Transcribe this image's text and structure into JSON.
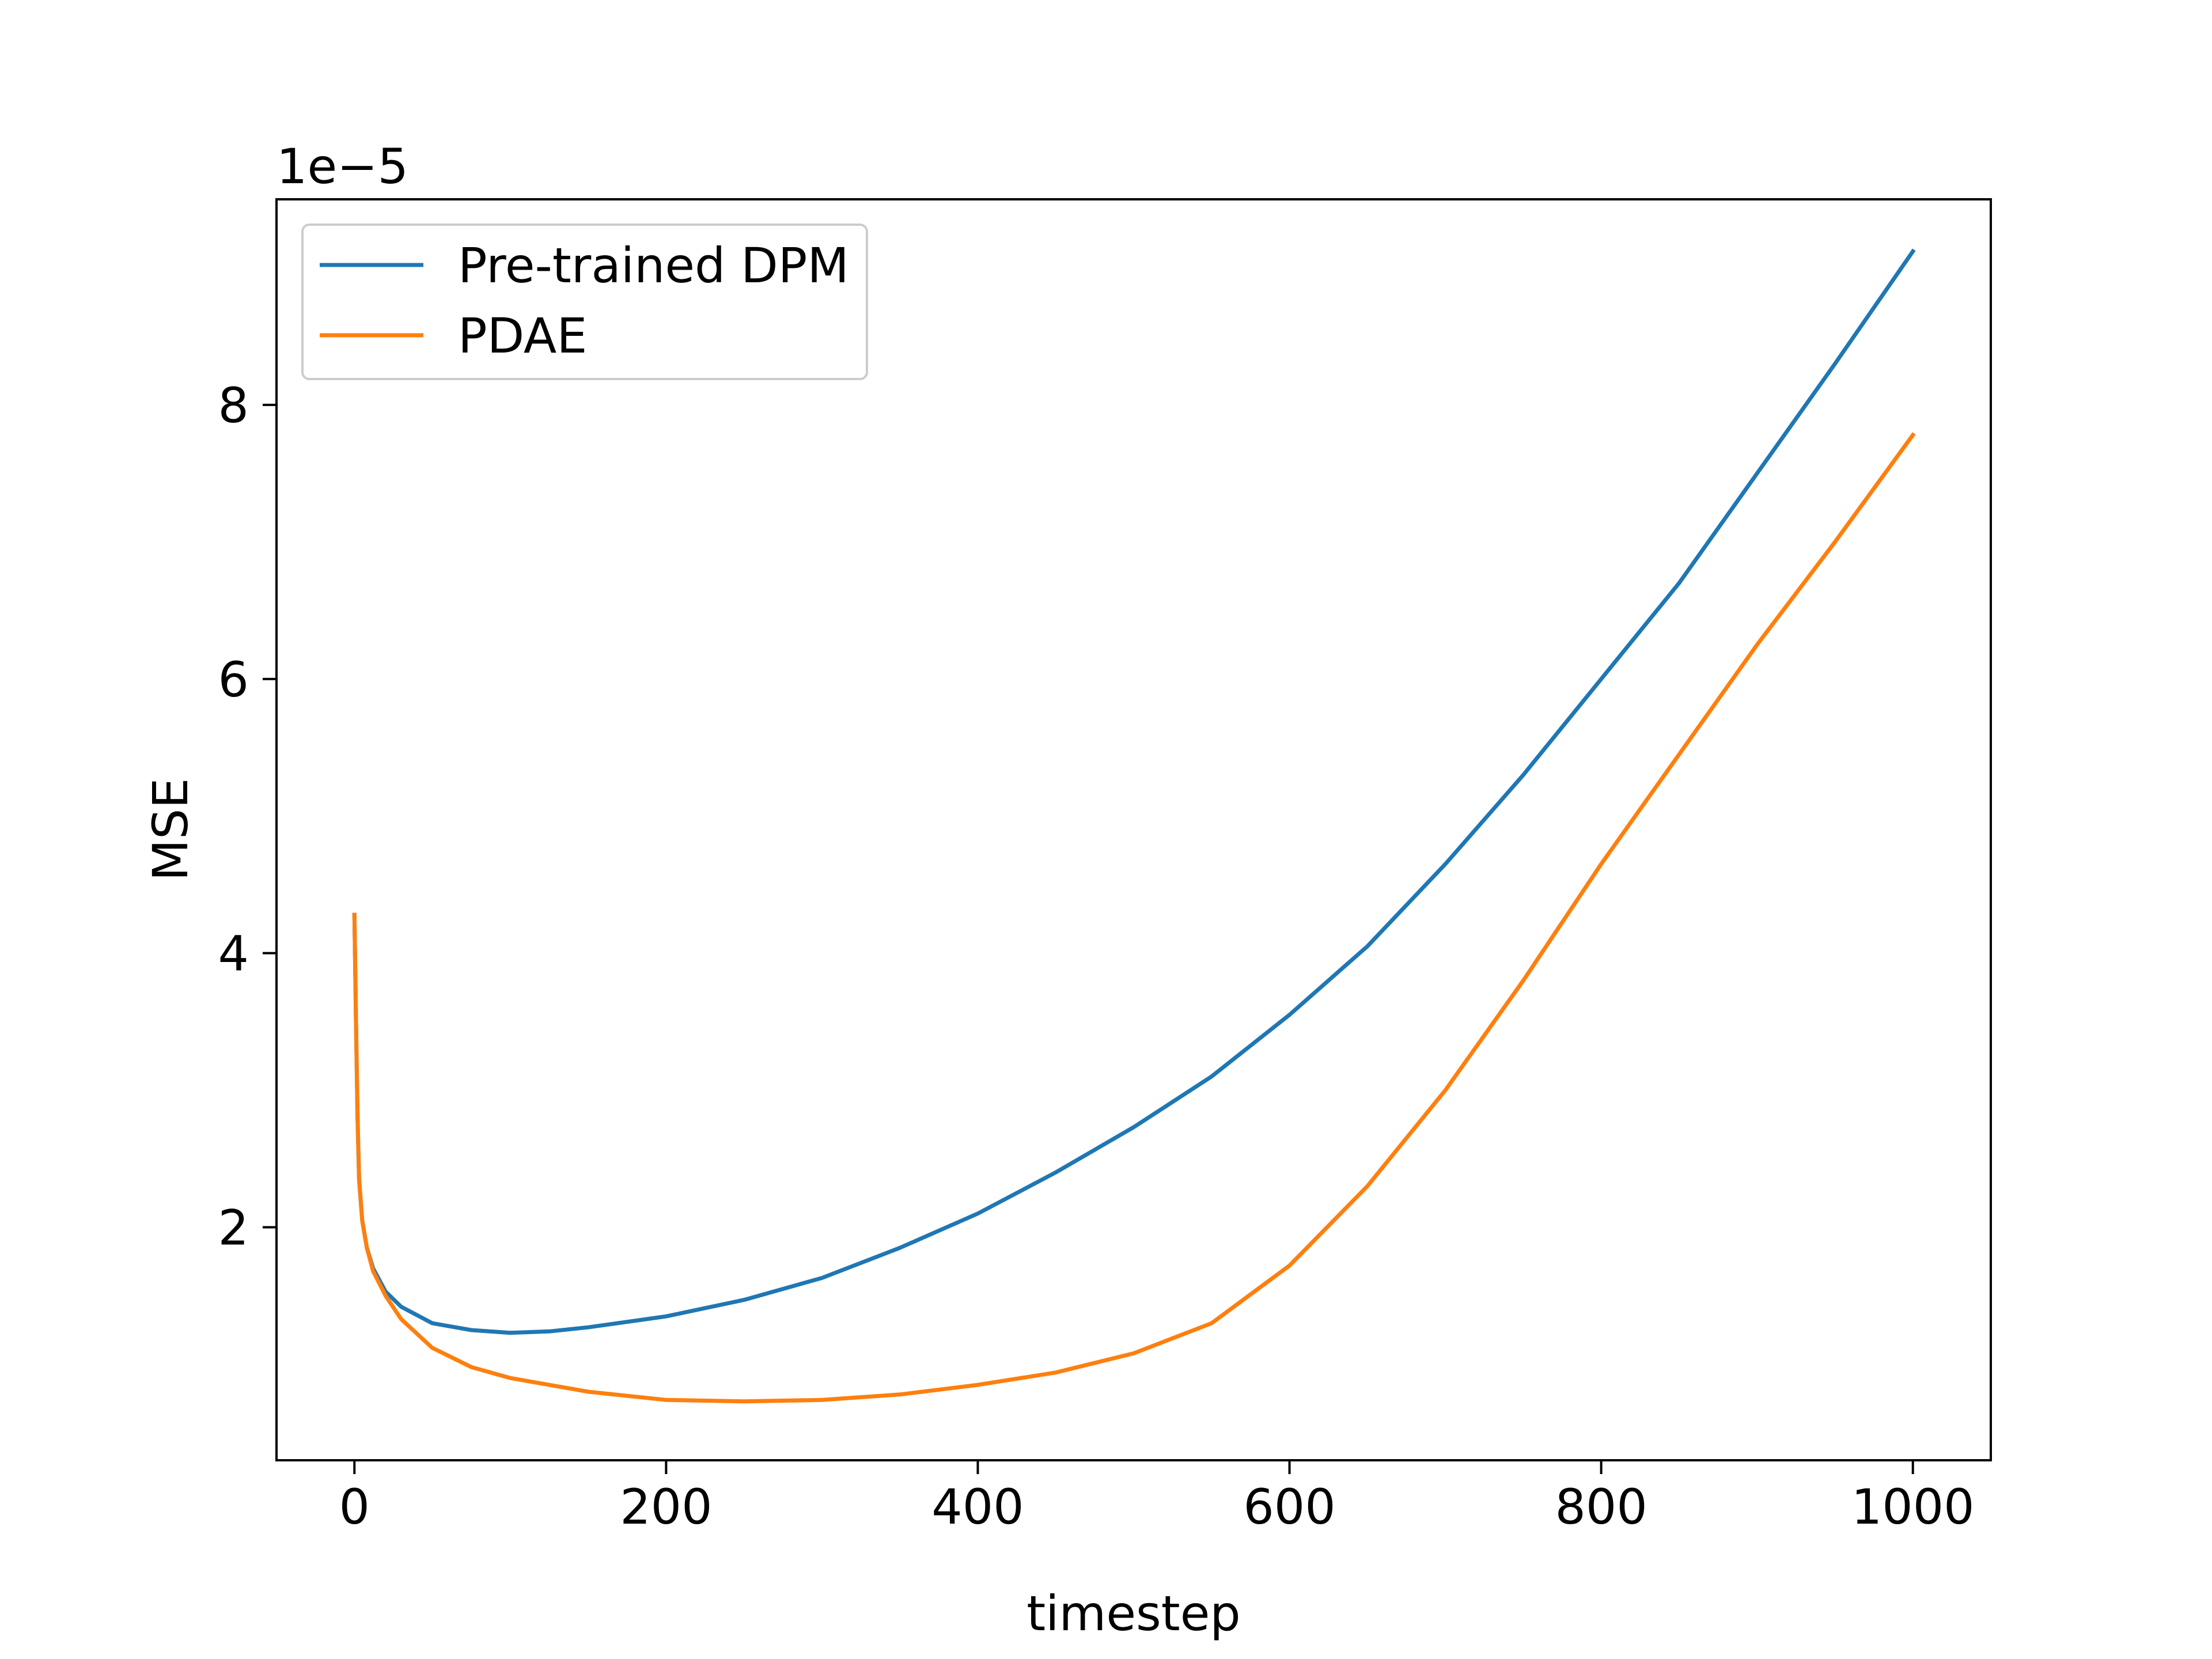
{
  "chart_data": {
    "type": "line",
    "title": "",
    "xlabel": "timestep",
    "ylabel": "MSE",
    "offset_text": "1e−5",
    "xlim": [
      -50,
      1050
    ],
    "ylim": [
      0.3,
      9.5
    ],
    "x_ticks": [
      0,
      200,
      400,
      600,
      800,
      1000
    ],
    "x_tick_labels": [
      "0",
      "200",
      "400",
      "600",
      "800",
      "1000"
    ],
    "y_ticks": [
      2,
      4,
      6,
      8
    ],
    "y_tick_labels": [
      "2",
      "4",
      "6",
      "8"
    ],
    "grid": false,
    "legend": {
      "placement": "upper-left"
    },
    "series": [
      {
        "name": "Pre-trained DPM",
        "color": "#1f77b4",
        "x": [
          0,
          1,
          2,
          3,
          5,
          8,
          12,
          20,
          30,
          50,
          75,
          100,
          125,
          150,
          200,
          250,
          300,
          350,
          400,
          450,
          500,
          550,
          600,
          650,
          700,
          750,
          800,
          850,
          900,
          950,
          1000
        ],
        "y": [
          4.28,
          3.5,
          2.8,
          2.35,
          2.05,
          1.85,
          1.7,
          1.53,
          1.42,
          1.3,
          1.25,
          1.23,
          1.24,
          1.27,
          1.35,
          1.47,
          1.63,
          1.85,
          2.1,
          2.4,
          2.73,
          3.1,
          3.55,
          4.05,
          4.65,
          5.3,
          6.0,
          6.7,
          7.5,
          8.3,
          9.12
        ]
      },
      {
        "name": "PDAE",
        "color": "#ff7f0e",
        "x": [
          0,
          1,
          2,
          3,
          5,
          8,
          12,
          20,
          30,
          50,
          75,
          100,
          150,
          200,
          250,
          300,
          350,
          400,
          450,
          500,
          550,
          600,
          650,
          700,
          750,
          800,
          850,
          900,
          950,
          1000
        ],
        "y": [
          4.28,
          3.5,
          2.8,
          2.35,
          2.05,
          1.85,
          1.68,
          1.5,
          1.33,
          1.12,
          0.98,
          0.9,
          0.8,
          0.74,
          0.73,
          0.74,
          0.78,
          0.85,
          0.94,
          1.08,
          1.3,
          1.72,
          2.3,
          3.0,
          3.8,
          4.65,
          5.45,
          6.25,
          7.0,
          7.78
        ]
      }
    ]
  }
}
